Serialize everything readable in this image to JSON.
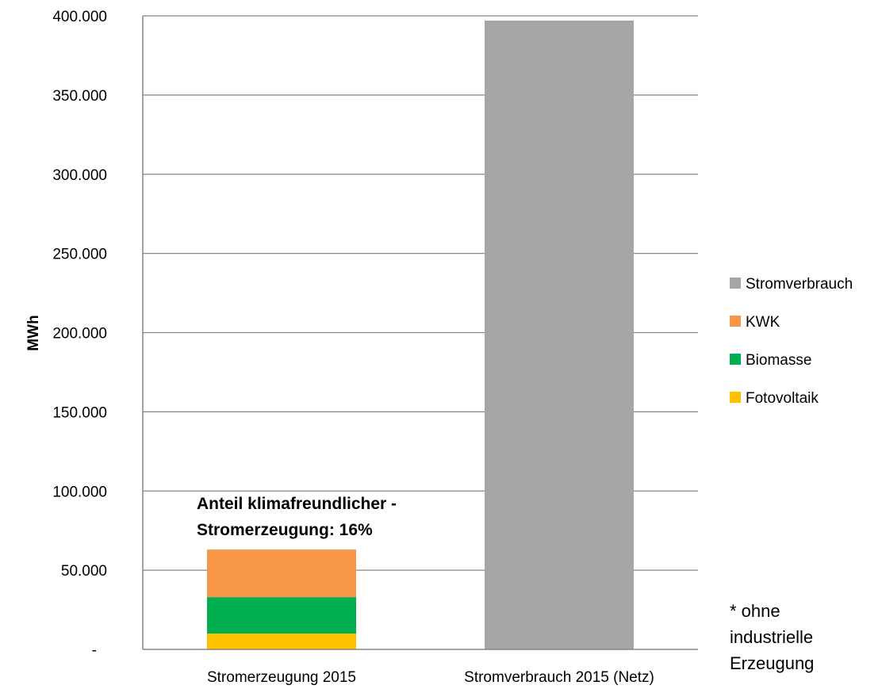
{
  "chart_data": {
    "type": "bar",
    "stacked": true,
    "title": "",
    "xlabel": "",
    "ylabel": "MWh",
    "ylim": [
      0,
      400000
    ],
    "yticks": [
      0,
      50000,
      100000,
      150000,
      200000,
      250000,
      300000,
      350000,
      400000
    ],
    "ytick_labels": [
      "-",
      "50.000",
      "100.000",
      "150.000",
      "200.000",
      "250.000",
      "300.000",
      "350.000",
      "400.000"
    ],
    "grid": true,
    "legend_position": "right",
    "categories": [
      "Stromerzeugung 2015",
      "Stromverbrauch 2015 (Netz)"
    ],
    "series": [
      {
        "name": "Fotovoltaik",
        "color": "#FFC000",
        "values": [
          10000,
          0
        ]
      },
      {
        "name": "Biomasse",
        "color": "#00B050",
        "values": [
          23000,
          0
        ]
      },
      {
        "name": "KWK",
        "color": "#F79646",
        "values": [
          30000,
          0
        ]
      },
      {
        "name": "Stromverbrauch",
        "color": "#A6A6A6",
        "values": [
          0,
          397000
        ]
      }
    ],
    "legend_order": [
      "Stromverbrauch",
      "KWK",
      "Biomasse",
      "Fotovoltaik"
    ],
    "annotation": {
      "lines": [
        "Anteil klimafreundlicher -",
        "Stromerzeugung: 16%"
      ]
    },
    "footnote": {
      "lines": [
        "* ohne",
        "industrielle",
        "Erzeugung"
      ]
    }
  }
}
